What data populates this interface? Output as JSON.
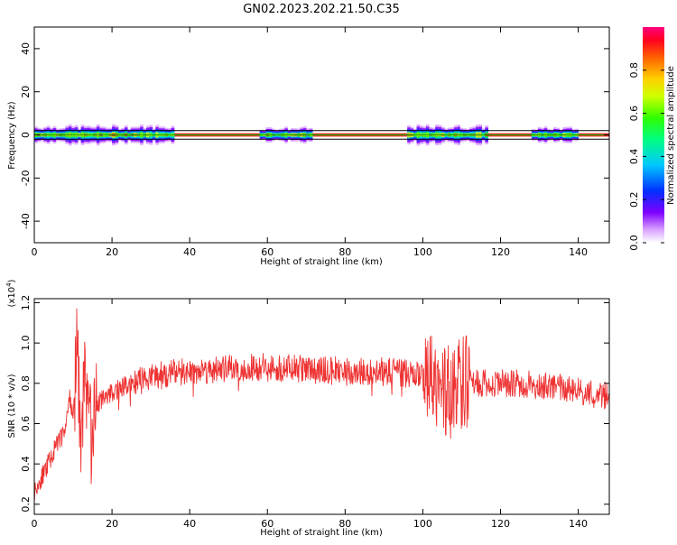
{
  "title": "GN02.2023.202.21.50.C35",
  "chart_data": [
    {
      "type": "heatmap",
      "xlabel": "Height of straight line (km)",
      "ylabel": "Frequency (Hz)",
      "xlim": [
        0,
        148
      ],
      "ylim": [
        -50,
        50
      ],
      "x_ticks": [
        0,
        20,
        40,
        60,
        80,
        100,
        120,
        140
      ],
      "y_ticks": [
        40,
        20,
        0,
        -20,
        -40
      ],
      "y_tick_labels": [
        "40",
        "20",
        "0",
        "-20",
        "-40"
      ],
      "colorbar": {
        "label": "Normalized spectral amplitude",
        "ticks": [
          0.0,
          0.2,
          0.4,
          0.6,
          0.8
        ],
        "tick_labels": [
          "0.0",
          "0.2",
          "0.4",
          "0.6",
          "0.8"
        ],
        "range": [
          0,
          1
        ],
        "colormap": "gist_rainbow"
      },
      "reference_lines_hz": [
        2,
        0,
        -2
      ],
      "segments": [
        {
          "x_start": 0,
          "x_end": 36,
          "max_spread_hz": 5
        },
        {
          "x_start": 58,
          "x_end": 71,
          "max_spread_hz": 4
        },
        {
          "x_start": 96,
          "x_end": 116,
          "max_spread_hz": 5
        },
        {
          "x_start": 128,
          "x_end": 140,
          "max_spread_hz": 4
        }
      ]
    },
    {
      "type": "line",
      "xlabel": "Height of straight line (km)",
      "ylabel": "SNR (10 * v/v)",
      "y_multiplier": "(x10",
      "y_multiplier_exp": "4",
      "y_multiplier_close": ")",
      "xlim": [
        0,
        148
      ],
      "ylim": [
        0.15,
        1.22
      ],
      "x_ticks": [
        0,
        20,
        40,
        60,
        80,
        100,
        120,
        140
      ],
      "y_ticks": [
        0.2,
        0.4,
        0.6,
        0.8,
        1.0,
        1.2
      ],
      "y_tick_labels": [
        "0.2",
        "0.4",
        "0.6",
        "0.8",
        "1.0",
        "1.2"
      ],
      "line_color": "#ee3333",
      "series": [
        {
          "x": [
            0,
            2,
            4,
            6,
            8,
            9,
            10,
            11,
            12,
            13,
            14,
            15,
            16,
            18,
            20,
            25,
            30,
            35,
            40,
            50,
            60,
            70,
            80,
            90,
            95,
            100,
            103,
            105,
            107,
            110,
            115,
            120,
            125,
            130,
            135,
            140,
            145,
            148
          ],
          "values": [
            0.26,
            0.34,
            0.42,
            0.5,
            0.58,
            0.74,
            0.62,
            0.98,
            0.5,
            0.9,
            0.58,
            0.58,
            0.7,
            0.72,
            0.76,
            0.8,
            0.83,
            0.85,
            0.86,
            0.87,
            0.88,
            0.87,
            0.86,
            0.86,
            0.85,
            0.84,
            0.78,
            0.8,
            0.76,
            0.8,
            0.8,
            0.8,
            0.8,
            0.79,
            0.78,
            0.76,
            0.74,
            0.74
          ]
        }
      ]
    }
  ]
}
